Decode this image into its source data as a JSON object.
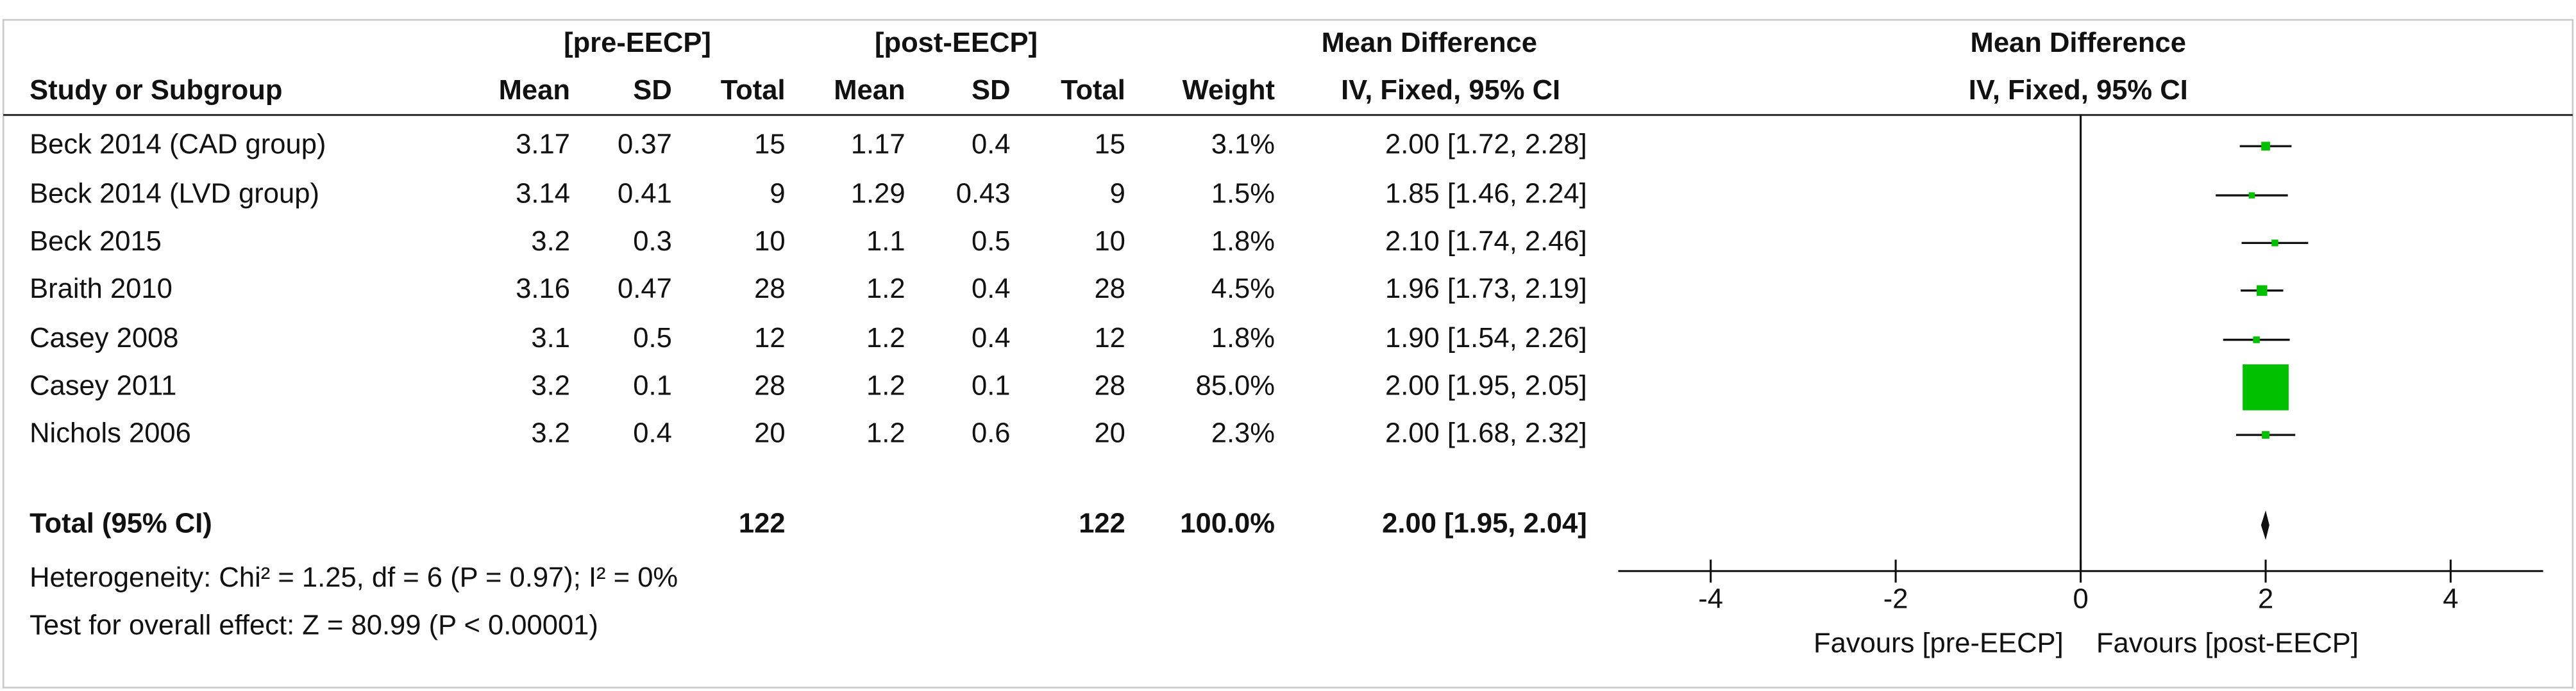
{
  "chart_data": {
    "type": "forest",
    "group_headers": {
      "pre": "[pre-EECP]",
      "post": "[post-EECP]",
      "effect": "Mean Difference",
      "plot": "Mean Difference"
    },
    "column_headers": {
      "study": "Study or Subgroup",
      "pre_mean": "Mean",
      "pre_sd": "SD",
      "pre_total": "Total",
      "post_mean": "Mean",
      "post_sd": "SD",
      "post_total": "Total",
      "weight": "Weight",
      "effect": "IV, Fixed, 95% CI",
      "plot": "IV, Fixed, 95% CI"
    },
    "studies": [
      {
        "name": "Beck 2014 (CAD group)",
        "pre_mean": 3.17,
        "pre_sd": 0.37,
        "pre_total": 15,
        "post_mean": 1.17,
        "post_sd": 0.4,
        "post_total": 15,
        "weight": 3.1,
        "weight_label": "3.1%",
        "md": 2.0,
        "lo": 1.72,
        "hi": 2.28,
        "ci_label": "2.00 [1.72, 2.28]"
      },
      {
        "name": "Beck 2014 (LVD group)",
        "pre_mean": 3.14,
        "pre_sd": 0.41,
        "pre_total": 9,
        "post_mean": 1.29,
        "post_sd": 0.43,
        "post_total": 9,
        "weight": 1.5,
        "weight_label": "1.5%",
        "md": 1.85,
        "lo": 1.46,
        "hi": 2.24,
        "ci_label": "1.85 [1.46, 2.24]"
      },
      {
        "name": "Beck 2015",
        "pre_mean": 3.2,
        "pre_sd": 0.3,
        "pre_total": 10,
        "post_mean": 1.1,
        "post_sd": 0.5,
        "post_total": 10,
        "weight": 1.8,
        "weight_label": "1.8%",
        "md": 2.1,
        "lo": 1.74,
        "hi": 2.46,
        "ci_label": "2.10 [1.74, 2.46]"
      },
      {
        "name": "Braith 2010",
        "pre_mean": 3.16,
        "pre_sd": 0.47,
        "pre_total": 28,
        "post_mean": 1.2,
        "post_sd": 0.4,
        "post_total": 28,
        "weight": 4.5,
        "weight_label": "4.5%",
        "md": 1.96,
        "lo": 1.73,
        "hi": 2.19,
        "ci_label": "1.96 [1.73, 2.19]"
      },
      {
        "name": "Casey 2008",
        "pre_mean": 3.1,
        "pre_sd": 0.5,
        "pre_total": 12,
        "post_mean": 1.2,
        "post_sd": 0.4,
        "post_total": 12,
        "weight": 1.8,
        "weight_label": "1.8%",
        "md": 1.9,
        "lo": 1.54,
        "hi": 2.26,
        "ci_label": "1.90 [1.54, 2.26]"
      },
      {
        "name": "Casey 2011",
        "pre_mean": 3.2,
        "pre_sd": 0.1,
        "pre_total": 28,
        "post_mean": 1.2,
        "post_sd": 0.1,
        "post_total": 28,
        "weight": 85.0,
        "weight_label": "85.0%",
        "md": 2.0,
        "lo": 1.95,
        "hi": 2.05,
        "ci_label": "2.00 [1.95, 2.05]"
      },
      {
        "name": "Nichols 2006",
        "pre_mean": 3.2,
        "pre_sd": 0.4,
        "pre_total": 20,
        "post_mean": 1.2,
        "post_sd": 0.6,
        "post_total": 20,
        "weight": 2.3,
        "weight_label": "2.3%",
        "md": 2.0,
        "lo": 1.68,
        "hi": 2.32,
        "ci_label": "2.00 [1.68, 2.32]"
      }
    ],
    "total": {
      "name": "Total (95% CI)",
      "pre_total": 122,
      "post_total": 122,
      "weight": 100.0,
      "weight_label": "100.0%",
      "md": 2.0,
      "lo": 1.95,
      "hi": 2.04,
      "ci_label": "2.00 [1.95, 2.04]"
    },
    "heterogeneity": "Heterogeneity: Chi² = 1.25, df = 6 (P = 0.97); I² = 0%",
    "overall_effect": "Test for overall effect: Z = 80.99 (P < 0.00001)",
    "favours_left": "Favours [pre-EECP]",
    "favours_right": "Favours [post-EECP]",
    "xlim": [
      -5,
      5
    ],
    "xticks": [
      -4,
      -2,
      0,
      2,
      4
    ],
    "color": "#00c000"
  }
}
